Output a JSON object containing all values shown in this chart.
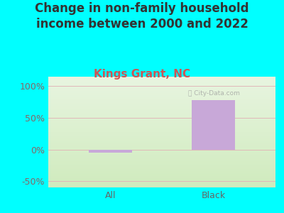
{
  "title": "Change in non-family household\nincome between 2000 and 2022",
  "subtitle": "Kings Grant, NC",
  "categories": [
    "All",
    "Black"
  ],
  "values": [
    -5,
    78
  ],
  "bar_color": "#c8a8d8",
  "background_color": "#00FFFF",
  "plot_bg_top": "#e8f5e0",
  "plot_bg_bottom": "#d8f0c8",
  "title_color": "#333333",
  "subtitle_color": "#cc5555",
  "axis_label_color": "#886666",
  "tick_label_color": "#666666",
  "ylim": [
    -60,
    115
  ],
  "yticks": [
    -50,
    0,
    50,
    100
  ],
  "ytick_labels": [
    "-50%",
    "0%",
    "50%",
    "100%"
  ],
  "grid_color": "#e0b8b8",
  "title_fontsize": 12,
  "subtitle_fontsize": 11,
  "tick_fontsize": 9,
  "bar_width": 0.42,
  "watermark": "City-Data.com"
}
